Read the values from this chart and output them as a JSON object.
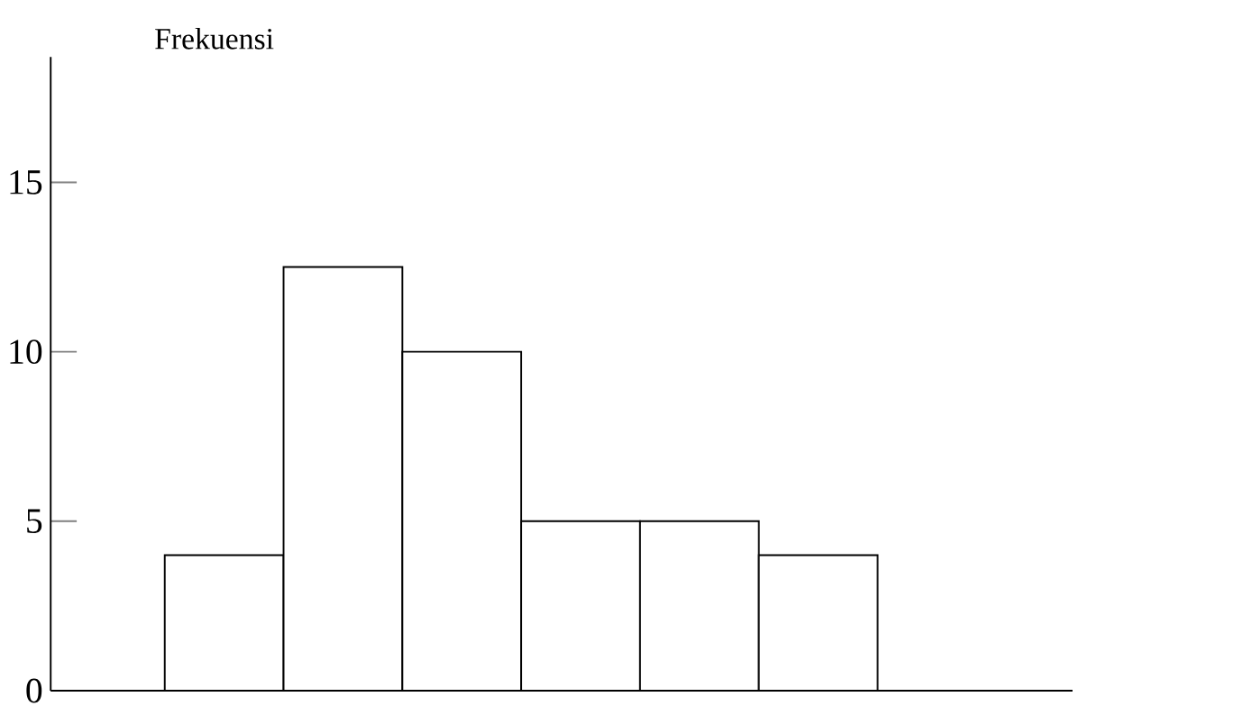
{
  "chart_data": {
    "type": "bar",
    "ylabel": "Frekuensi",
    "categories": [
      null,
      null,
      null,
      null,
      null,
      null
    ],
    "values": [
      4,
      12.5,
      10,
      5,
      5,
      4
    ],
    "color": "#ffffff",
    "ylim": [
      0,
      18.7
    ],
    "yticks": [
      0,
      5,
      10,
      15
    ]
  }
}
